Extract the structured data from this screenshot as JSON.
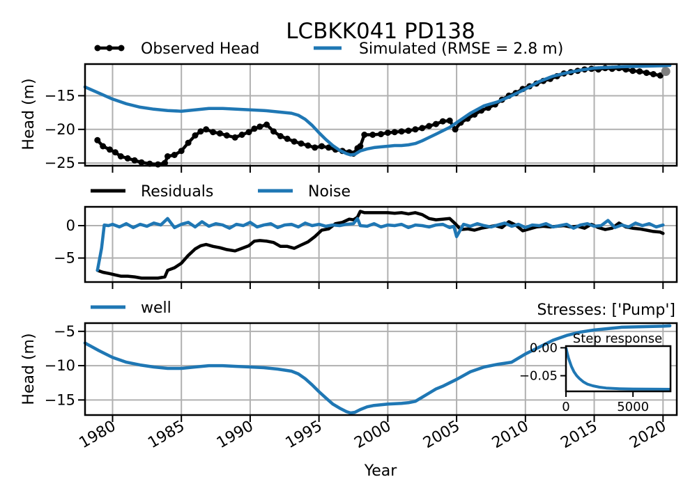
{
  "colors": {
    "observed": "#000000",
    "simulated": "#1f77b4",
    "residuals": "#000000",
    "noise": "#1f77b4",
    "well": "#1f77b4",
    "grid": "#b0b0b0"
  },
  "x_axis": {
    "label": "Year",
    "range": [
      1978,
      2021
    ],
    "ticks": [
      1980,
      1985,
      1990,
      1995,
      2000,
      2005,
      2010,
      2015,
      2020
    ],
    "tick_labels": [
      "1980",
      "1985",
      "1990",
      "1995",
      "2000",
      "2005",
      "2010",
      "2015",
      "2020"
    ]
  },
  "chart_data": [
    {
      "type": "line",
      "title": "LCBKK041 PD138",
      "ylabel": "Head (m)",
      "ylim": [
        -25.4,
        -10.3
      ],
      "yticks": [
        -25,
        -20,
        -15
      ],
      "ytick_labels": [
        "−25",
        "−20",
        "−15"
      ],
      "grid": true,
      "legend_placement": "top",
      "legend": [
        "Observed Head",
        "Simulated (RMSE = 2.8 m)"
      ],
      "series": [
        {
          "name": "Observed Head",
          "style": "line-markers",
          "x": [
            1978.9,
            1979.3,
            1979.8,
            1980.2,
            1980.6,
            1981.1,
            1981.6,
            1982.1,
            1982.7,
            1983.3,
            1983.8,
            1984.0,
            1984.5,
            1985.0,
            1985.5,
            1986.0,
            1986.4,
            1986.8,
            1987.3,
            1987.8,
            1988.3,
            1988.9,
            1989.4,
            1989.9,
            1990.3,
            1990.7,
            1991.2,
            1991.7,
            1992.2,
            1992.7,
            1993.2,
            1993.7,
            1994.2,
            1994.7,
            1995.2,
            1995.7,
            1996.2,
            1996.7,
            1997.2,
            1997.5,
            1997.8,
            1998.0,
            1998.3,
            1998.9,
            1999.5,
            2000.0,
            2000.5,
            2001.0,
            2001.5,
            2002.0,
            2002.5,
            2003.0,
            2003.5,
            2004.0,
            2004.5,
            2004.9,
            2005.3,
            2005.8,
            2006.3,
            2006.8,
            2007.3,
            2007.8,
            2008.3,
            2008.8,
            2009.3,
            2009.8,
            2010.3,
            2010.8,
            2011.3,
            2011.8,
            2012.3,
            2012.8,
            2013.3,
            2013.8,
            2014.3,
            2014.8,
            2015.3,
            2015.8,
            2016.3,
            2016.8,
            2017.3,
            2017.8,
            2018.3,
            2018.8,
            2019.3,
            2019.8,
            2020.2
          ],
          "y": [
            -21.6,
            -22.5,
            -23.0,
            -23.4,
            -24.0,
            -24.3,
            -24.6,
            -24.9,
            -25.1,
            -25.2,
            -25.0,
            -24.0,
            -23.8,
            -23.2,
            -22.0,
            -20.9,
            -20.3,
            -20.0,
            -20.4,
            -20.6,
            -20.9,
            -21.2,
            -20.8,
            -20.4,
            -19.9,
            -19.6,
            -19.3,
            -20.3,
            -21.0,
            -21.4,
            -21.8,
            -22.1,
            -22.4,
            -22.7,
            -22.5,
            -22.7,
            -23.0,
            -23.2,
            -23.4,
            -23.6,
            -22.8,
            -22.5,
            -20.8,
            -20.8,
            -20.7,
            -20.5,
            -20.4,
            -20.3,
            -20.2,
            -20.0,
            -19.8,
            -19.5,
            -19.2,
            -18.8,
            -18.7,
            -20.0,
            -19.0,
            -18.4,
            -17.8,
            -17.2,
            -16.8,
            -16.3,
            -15.6,
            -15.0,
            -14.6,
            -14.0,
            -13.6,
            -13.2,
            -12.8,
            -12.5,
            -12.1,
            -11.7,
            -11.5,
            -11.3,
            -11.1,
            -11.0,
            -11.1,
            -10.9,
            -11.0,
            -10.9,
            -11.1,
            -11.3,
            -11.4,
            -11.6,
            -11.8,
            -12.0,
            -11.4
          ]
        },
        {
          "name": "Simulated (RMSE = 2.8 m)",
          "style": "line",
          "x": [
            1978.0,
            1979.0,
            1980.0,
            1981.0,
            1982.0,
            1983.0,
            1984.0,
            1985.0,
            1986.0,
            1987.0,
            1988.0,
            1989.0,
            1990.0,
            1991.0,
            1992.0,
            1993.0,
            1993.5,
            1994.0,
            1994.5,
            1995.0,
            1995.5,
            1996.0,
            1996.5,
            1997.0,
            1997.3,
            1997.6,
            1998.0,
            1998.5,
            1999.0,
            1999.5,
            2000.0,
            2000.5,
            2001.0,
            2001.5,
            2002.0,
            2002.5,
            2003.0,
            2003.5,
            2004.0,
            2004.5,
            2005.0,
            2006.0,
            2007.0,
            2008.0,
            2009.0,
            2010.0,
            2011.0,
            2012.0,
            2013.0,
            2014.0,
            2015.0,
            2016.0,
            2017.0,
            2018.0,
            2019.0,
            2020.0,
            2020.5
          ],
          "y": [
            -13.7,
            -14.6,
            -15.5,
            -16.2,
            -16.7,
            -17.0,
            -17.2,
            -17.3,
            -17.1,
            -16.9,
            -16.9,
            -17.0,
            -17.1,
            -17.2,
            -17.4,
            -17.6,
            -17.9,
            -18.5,
            -19.4,
            -20.5,
            -21.5,
            -22.4,
            -23.1,
            -23.6,
            -23.8,
            -23.7,
            -23.2,
            -22.9,
            -22.7,
            -22.6,
            -22.5,
            -22.4,
            -22.4,
            -22.3,
            -22.1,
            -21.7,
            -21.2,
            -20.7,
            -20.2,
            -19.7,
            -19.0,
            -17.6,
            -16.5,
            -15.9,
            -15.0,
            -14.0,
            -12.9,
            -12.1,
            -11.6,
            -11.2,
            -10.9,
            -10.8,
            -10.7,
            -10.65,
            -10.6,
            -10.55,
            -10.5
          ]
        }
      ]
    },
    {
      "type": "line",
      "ylim": [
        -8.7,
        2.9
      ],
      "yticks": [
        -5,
        0
      ],
      "ytick_labels": [
        "−5",
        "0"
      ],
      "grid": true,
      "legend_placement": "top-left",
      "legend": [
        "Residuals",
        "Noise"
      ],
      "series": [
        {
          "name": "Residuals",
          "x": [
            1978.9,
            1979.3,
            1979.8,
            1980.2,
            1980.6,
            1981.1,
            1981.6,
            1982.1,
            1982.7,
            1983.3,
            1983.8,
            1984.0,
            1984.5,
            1985.0,
            1985.5,
            1986.0,
            1986.4,
            1986.8,
            1987.3,
            1987.8,
            1988.3,
            1988.9,
            1989.4,
            1989.9,
            1990.3,
            1990.7,
            1991.2,
            1991.7,
            1992.2,
            1992.7,
            1993.2,
            1993.7,
            1994.2,
            1994.7,
            1995.2,
            1995.7,
            1996.2,
            1996.7,
            1997.2,
            1997.5,
            1997.8,
            1998.0,
            1998.3,
            1998.9,
            1999.5,
            2000.0,
            2000.5,
            2001.0,
            2001.5,
            2002.0,
            2002.5,
            2003.0,
            2003.5,
            2004.0,
            2004.5,
            2004.9,
            2005.3,
            2005.8,
            2006.3,
            2006.8,
            2007.3,
            2007.8,
            2008.3,
            2008.8,
            2009.3,
            2009.8,
            2010.3,
            2010.8,
            2011.3,
            2011.8,
            2012.3,
            2012.8,
            2013.3,
            2013.8,
            2014.3,
            2014.8,
            2015.3,
            2015.8,
            2016.3,
            2016.8,
            2017.3,
            2017.8,
            2018.3,
            2018.8,
            2019.3,
            2019.8,
            2020.0
          ],
          "y": [
            -6.9,
            -7.2,
            -7.4,
            -7.6,
            -7.8,
            -7.8,
            -7.9,
            -8.1,
            -8.1,
            -8.1,
            -7.9,
            -6.9,
            -6.5,
            -5.8,
            -4.6,
            -3.6,
            -3.1,
            -2.9,
            -3.2,
            -3.4,
            -3.7,
            -3.9,
            -3.5,
            -3.1,
            -2.4,
            -2.3,
            -2.4,
            -2.6,
            -3.2,
            -3.2,
            -3.5,
            -3.0,
            -2.5,
            -1.7,
            -0.7,
            -0.5,
            0.3,
            0.5,
            1.0,
            0.9,
            1.3,
            2.2,
            2.0,
            2.0,
            2.0,
            2.0,
            1.9,
            2.0,
            1.8,
            2.0,
            1.7,
            1.1,
            0.9,
            1.0,
            1.1,
            0.3,
            -0.6,
            -0.5,
            -0.7,
            -0.4,
            -0.2,
            0.0,
            -0.3,
            0.6,
            0.1,
            -0.8,
            -0.5,
            -0.2,
            -0.1,
            -0.2,
            -0.1,
            0.0,
            -0.2,
            -0.1,
            -0.4,
            0.2,
            -0.3,
            -0.6,
            -0.4,
            0.4,
            -0.2,
            -0.4,
            -0.5,
            -0.7,
            -0.9,
            -1.0,
            -1.2
          ]
        },
        {
          "name": "Noise",
          "x": [
            1978.9,
            1979.2,
            1979.4,
            1979.7,
            1980.0,
            1980.5,
            1981.0,
            1981.5,
            1982.0,
            1982.5,
            1983.0,
            1983.5,
            1984.0,
            1984.5,
            1985.0,
            1985.5,
            1986.0,
            1986.5,
            1987.0,
            1987.5,
            1988.0,
            1988.5,
            1989.0,
            1989.5,
            1990.0,
            1990.5,
            1991.0,
            1991.5,
            1992.0,
            1992.5,
            1993.0,
            1993.5,
            1994.0,
            1994.5,
            1995.0,
            1995.5,
            1996.0,
            1996.5,
            1997.0,
            1997.5,
            1997.8,
            1998.0,
            1998.5,
            1999.0,
            1999.5,
            2000.0,
            2000.5,
            2001.0,
            2001.5,
            2002.0,
            2002.5,
            2003.0,
            2003.5,
            2004.0,
            2004.5,
            2004.8,
            2005.0,
            2005.5,
            2006.0,
            2006.5,
            2007.0,
            2007.5,
            2008.0,
            2008.5,
            2009.0,
            2009.5,
            2010.0,
            2010.5,
            2011.0,
            2011.5,
            2012.0,
            2012.5,
            2013.0,
            2013.5,
            2014.0,
            2014.5,
            2015.0,
            2015.5,
            2016.0,
            2016.5,
            2017.0,
            2017.5,
            2018.0,
            2018.5,
            2019.0,
            2019.5,
            2020.0
          ],
          "y": [
            -6.9,
            -3.5,
            0.1,
            0.0,
            0.2,
            -0.2,
            0.3,
            -0.3,
            0.2,
            -0.1,
            0.4,
            0.1,
            1.1,
            -0.3,
            0.2,
            0.5,
            -0.2,
            0.6,
            -0.1,
            0.3,
            0.1,
            -0.4,
            0.2,
            0.0,
            0.5,
            -0.2,
            0.1,
            0.3,
            -0.3,
            0.1,
            0.2,
            -0.2,
            0.4,
            0.0,
            0.2,
            -0.1,
            0.1,
            0.0,
            0.2,
            0.3,
            1.1,
            0.0,
            -0.1,
            0.3,
            -0.2,
            0.1,
            0.0,
            0.2,
            -0.3,
            0.1,
            0.0,
            -0.2,
            0.1,
            0.2,
            -0.3,
            -0.1,
            -1.7,
            0.2,
            -0.1,
            0.3,
            0.0,
            -0.2,
            0.1,
            0.4,
            -0.1,
            0.2,
            -0.3,
            0.1,
            0.0,
            0.3,
            -0.2,
            0.0,
            0.2,
            -0.4,
            0.1,
            0.3,
            -0.1,
            0.0,
            0.8,
            -0.3,
            0.1,
            -0.2,
            0.4,
            0.0,
            0.3,
            -0.2,
            0.1
          ]
        }
      ]
    },
    {
      "type": "line",
      "ylabel": "Head (m)",
      "ylim": [
        -17.2,
        -3.8
      ],
      "yticks": [
        -15,
        -10,
        -5
      ],
      "ytick_labels": [
        "−15",
        "−10",
        "−5"
      ],
      "grid": true,
      "legend_placement": "top-left",
      "legend": [
        "well"
      ],
      "annotation": "Stresses: ['Pump']",
      "series": [
        {
          "name": "well",
          "x": [
            1978.0,
            1979.0,
            1980.0,
            1981.0,
            1982.0,
            1983.0,
            1984.0,
            1985.0,
            1986.0,
            1987.0,
            1988.0,
            1989.0,
            1990.0,
            1991.0,
            1992.0,
            1993.0,
            1993.5,
            1994.0,
            1994.5,
            1995.0,
            1995.5,
            1996.0,
            1996.5,
            1997.0,
            1997.3,
            1997.6,
            1998.0,
            1998.5,
            1999.0,
            2000.0,
            2001.0,
            2001.5,
            2002.0,
            2002.5,
            2003.0,
            2003.5,
            2004.0,
            2004.5,
            2005.0,
            2006.0,
            2007.0,
            2008.0,
            2009.0,
            2010.0,
            2011.0,
            2012.0,
            2013.0,
            2014.0,
            2015.0,
            2016.0,
            2017.0,
            2018.0,
            2019.0,
            2020.0,
            2020.5
          ],
          "y": [
            -6.7,
            -7.8,
            -8.8,
            -9.5,
            -9.9,
            -10.2,
            -10.4,
            -10.4,
            -10.2,
            -10.0,
            -10.0,
            -10.1,
            -10.2,
            -10.3,
            -10.5,
            -10.8,
            -11.2,
            -11.9,
            -12.8,
            -13.8,
            -14.7,
            -15.6,
            -16.2,
            -16.7,
            -16.9,
            -16.8,
            -16.4,
            -16.0,
            -15.8,
            -15.6,
            -15.5,
            -15.4,
            -15.2,
            -14.6,
            -14.0,
            -13.4,
            -13.0,
            -12.5,
            -12.0,
            -10.9,
            -10.2,
            -9.8,
            -9.5,
            -8.3,
            -7.3,
            -6.3,
            -5.6,
            -5.1,
            -4.8,
            -4.6,
            -4.4,
            -4.35,
            -4.3,
            -4.25,
            -4.2
          ]
        }
      ]
    },
    {
      "type": "line",
      "title": "Step response",
      "xlim": [
        0,
        7800
      ],
      "ylim": [
        -0.078,
        0.003
      ],
      "xticks": [
        0,
        5000
      ],
      "xtick_labels": [
        "0",
        "5000"
      ],
      "yticks": [
        0.0,
        -0.05
      ],
      "ytick_labels": [
        "0.00",
        "−0.05"
      ],
      "grid": false,
      "series": [
        {
          "name": "Step response",
          "x": [
            0,
            100,
            200,
            400,
            600,
            800,
            1000,
            1300,
            1600,
            2000,
            2500,
            3000,
            3500,
            4000,
            5000,
            6000,
            7000,
            7800
          ],
          "y": [
            0.0,
            -0.01,
            -0.019,
            -0.033,
            -0.043,
            -0.05,
            -0.055,
            -0.061,
            -0.065,
            -0.068,
            -0.0705,
            -0.072,
            -0.0728,
            -0.0733,
            -0.0738,
            -0.074,
            -0.0741,
            -0.0742
          ]
        }
      ]
    }
  ]
}
